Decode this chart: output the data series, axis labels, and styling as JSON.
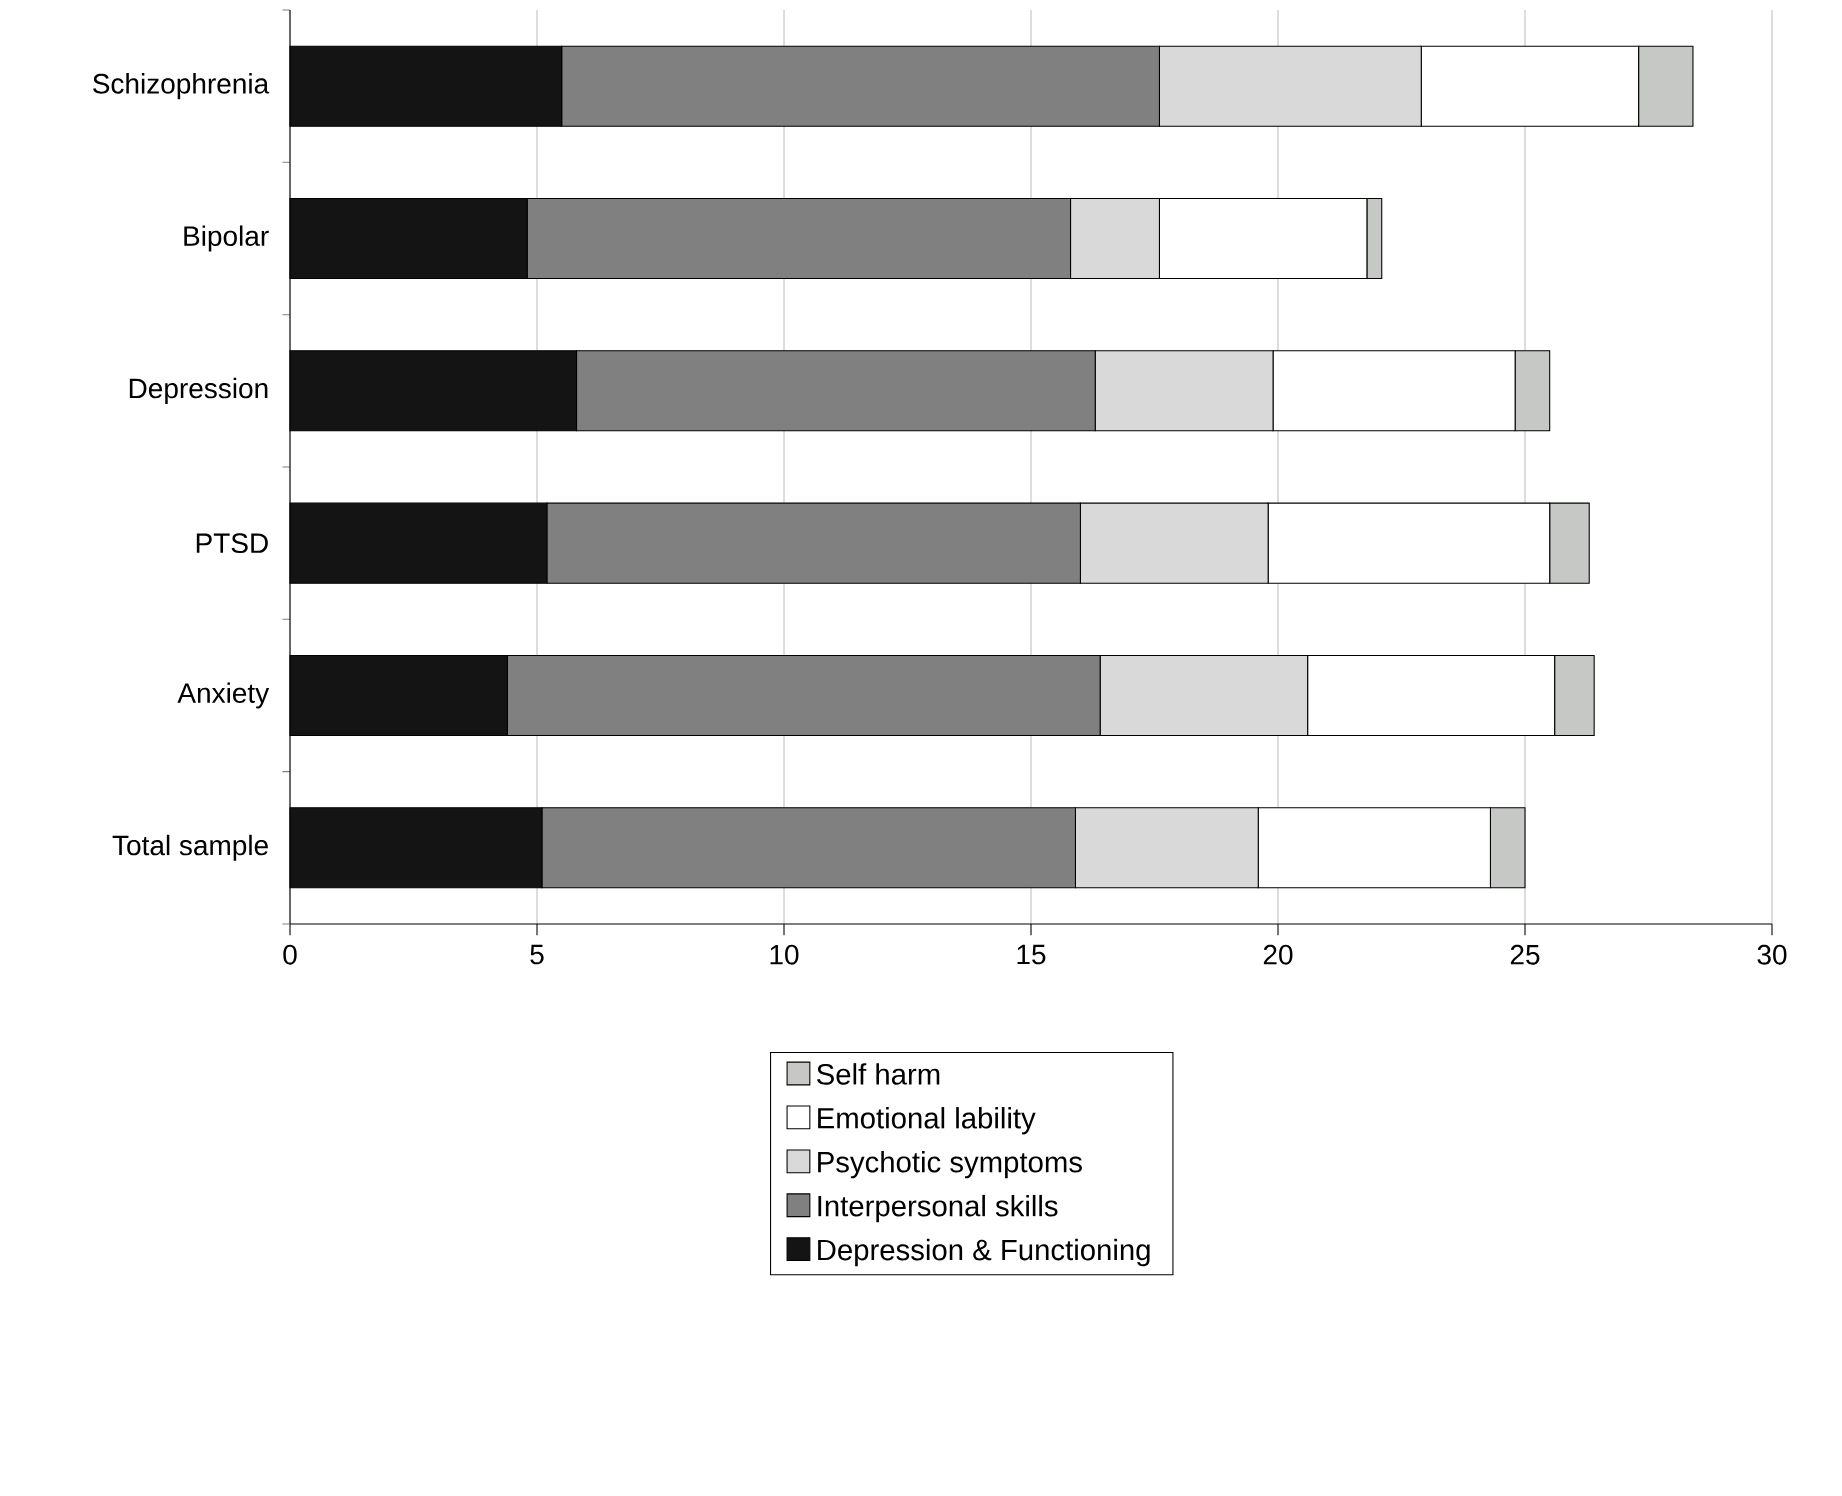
{
  "chart_data": {
    "type": "bar",
    "orientation": "horizontal",
    "stacked": true,
    "categories": [
      "Schizophrenia",
      "Bipolar",
      "Depression",
      "PTSD",
      "Anxiety",
      "Total sample"
    ],
    "series": [
      {
        "name": "Depression & Functioning",
        "color": "#141414",
        "values": [
          5.5,
          4.8,
          5.8,
          5.2,
          4.4,
          5.1
        ]
      },
      {
        "name": "Interpersonal skills",
        "color": "#808080",
        "values": [
          12.1,
          11.0,
          10.5,
          10.8,
          12.0,
          10.8
        ]
      },
      {
        "name": "Psychotic symptoms",
        "color": "#d9d9d9",
        "values": [
          5.3,
          1.8,
          3.6,
          3.8,
          4.2,
          3.7
        ]
      },
      {
        "name": "Emotional lability",
        "color": "#ffffff",
        "values": [
          4.4,
          4.2,
          4.9,
          5.7,
          5.0,
          4.7
        ]
      },
      {
        "name": "Self harm",
        "color": "#c6c8c6",
        "values": [
          1.1,
          0.3,
          0.7,
          0.8,
          0.8,
          0.7
        ]
      }
    ],
    "xlim": [
      0,
      30
    ],
    "xticks": [
      0,
      5,
      10,
      15,
      20,
      25,
      30
    ],
    "grid": "x",
    "legend": "bottom"
  }
}
